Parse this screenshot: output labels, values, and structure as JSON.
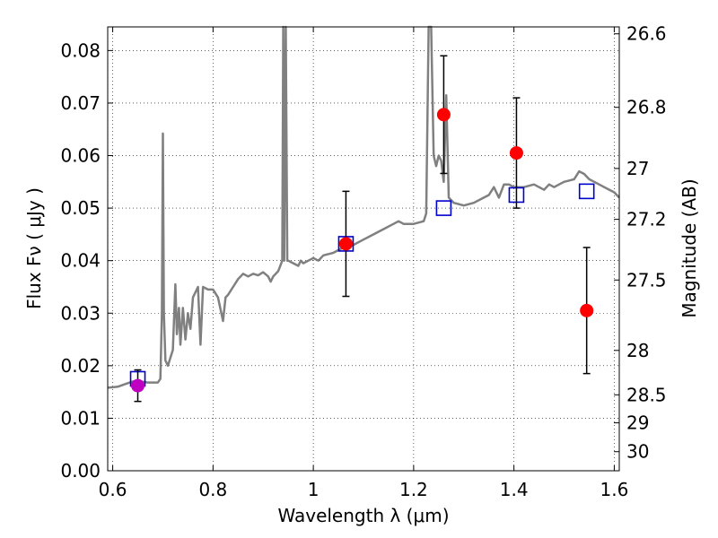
{
  "chart_data": {
    "type": "scatter",
    "xlabel": "Wavelength  λ (μm)",
    "ylabel": "Flux  Fν  ( μJy )",
    "ylabel_right": "Magnitude (AB)",
    "xlim": [
      0.59,
      1.61
    ],
    "ylim": [
      0.0,
      0.0845
    ],
    "grid": true,
    "x_ticks": [
      {
        "value": 0.6,
        "label": "0.6"
      },
      {
        "value": 0.8,
        "label": "0.8"
      },
      {
        "value": 1.0,
        "label": "1"
      },
      {
        "value": 1.2,
        "label": "1.2"
      },
      {
        "value": 1.4,
        "label": "1.4"
      },
      {
        "value": 1.6,
        "label": "1.6"
      }
    ],
    "y_ticks": [
      {
        "value": 0.0,
        "label": "0.00"
      },
      {
        "value": 0.01,
        "label": "0.01"
      },
      {
        "value": 0.02,
        "label": "0.02"
      },
      {
        "value": 0.03,
        "label": "0.03"
      },
      {
        "value": 0.04,
        "label": "0.04"
      },
      {
        "value": 0.05,
        "label": "0.05"
      },
      {
        "value": 0.06,
        "label": "0.06"
      },
      {
        "value": 0.07,
        "label": "0.07"
      },
      {
        "value": 0.08,
        "label": "0.08"
      }
    ],
    "right_ticks": [
      {
        "value": 26.6,
        "label": "26.6"
      },
      {
        "value": 26.8,
        "label": "26.8"
      },
      {
        "value": 27.0,
        "label": "27"
      },
      {
        "value": 27.2,
        "label": "27.2"
      },
      {
        "value": 27.5,
        "label": "27.5"
      },
      {
        "value": 28.0,
        "label": "28"
      },
      {
        "value": 28.5,
        "label": "28.5"
      },
      {
        "value": 29.0,
        "label": "29"
      },
      {
        "value": 30.0,
        "label": "30"
      }
    ],
    "colors": {
      "spectrum": "#808080",
      "observed": "#ff0000",
      "observed_first": "#c000c0",
      "model": "#0000cc",
      "errorbar": "#000000",
      "grid": "#000000"
    },
    "spectrum": [
      [
        0.59,
        0.0158
      ],
      [
        0.61,
        0.016
      ],
      [
        0.625,
        0.0165
      ],
      [
        0.64,
        0.017
      ],
      [
        0.655,
        0.017
      ],
      [
        0.67,
        0.0168
      ],
      [
        0.69,
        0.0168
      ],
      [
        0.695,
        0.0175
      ],
      [
        0.698,
        0.03
      ],
      [
        0.7,
        0.0642
      ],
      [
        0.702,
        0.03
      ],
      [
        0.705,
        0.021
      ],
      [
        0.71,
        0.02
      ],
      [
        0.72,
        0.023
      ],
      [
        0.725,
        0.0355
      ],
      [
        0.728,
        0.026
      ],
      [
        0.732,
        0.031
      ],
      [
        0.735,
        0.024
      ],
      [
        0.74,
        0.031
      ],
      [
        0.745,
        0.025
      ],
      [
        0.75,
        0.03
      ],
      [
        0.755,
        0.027
      ],
      [
        0.76,
        0.033
      ],
      [
        0.77,
        0.035
      ],
      [
        0.775,
        0.024
      ],
      [
        0.78,
        0.035
      ],
      [
        0.79,
        0.0345
      ],
      [
        0.8,
        0.0345
      ],
      [
        0.81,
        0.033
      ],
      [
        0.82,
        0.0285
      ],
      [
        0.825,
        0.033
      ],
      [
        0.83,
        0.0335
      ],
      [
        0.84,
        0.035
      ],
      [
        0.85,
        0.0365
      ],
      [
        0.86,
        0.0375
      ],
      [
        0.87,
        0.037
      ],
      [
        0.88,
        0.0375
      ],
      [
        0.89,
        0.0372
      ],
      [
        0.9,
        0.0378
      ],
      [
        0.91,
        0.037
      ],
      [
        0.915,
        0.036
      ],
      [
        0.92,
        0.037
      ],
      [
        0.93,
        0.038
      ],
      [
        0.938,
        0.04
      ],
      [
        0.94,
        0.0845
      ],
      [
        0.942,
        0.04
      ],
      [
        0.945,
        0.0845
      ],
      [
        0.948,
        0.04
      ],
      [
        0.95,
        0.04
      ],
      [
        0.96,
        0.0395
      ],
      [
        0.97,
        0.039
      ],
      [
        0.975,
        0.04
      ],
      [
        0.98,
        0.0395
      ],
      [
        0.99,
        0.04
      ],
      [
        1.0,
        0.0405
      ],
      [
        1.01,
        0.04
      ],
      [
        1.02,
        0.041
      ],
      [
        1.04,
        0.0415
      ],
      [
        1.06,
        0.0425
      ],
      [
        1.08,
        0.043
      ],
      [
        1.1,
        0.044
      ],
      [
        1.12,
        0.045
      ],
      [
        1.14,
        0.046
      ],
      [
        1.16,
        0.047
      ],
      [
        1.17,
        0.0475
      ],
      [
        1.18,
        0.047
      ],
      [
        1.2,
        0.047
      ],
      [
        1.22,
        0.0475
      ],
      [
        1.225,
        0.049
      ],
      [
        1.23,
        0.0845
      ],
      [
        1.235,
        0.0845
      ],
      [
        1.24,
        0.06
      ],
      [
        1.245,
        0.058
      ],
      [
        1.25,
        0.06
      ],
      [
        1.255,
        0.059
      ],
      [
        1.26,
        0.055
      ],
      [
        1.265,
        0.0715
      ],
      [
        1.27,
        0.052
      ],
      [
        1.28,
        0.051
      ],
      [
        1.3,
        0.0505
      ],
      [
        1.32,
        0.051
      ],
      [
        1.34,
        0.052
      ],
      [
        1.35,
        0.0525
      ],
      [
        1.36,
        0.054
      ],
      [
        1.37,
        0.052
      ],
      [
        1.38,
        0.0545
      ],
      [
        1.39,
        0.0545
      ],
      [
        1.4,
        0.054
      ],
      [
        1.42,
        0.054
      ],
      [
        1.44,
        0.0545
      ],
      [
        1.45,
        0.054
      ],
      [
        1.46,
        0.0535
      ],
      [
        1.47,
        0.0545
      ],
      [
        1.48,
        0.054
      ],
      [
        1.49,
        0.0545
      ],
      [
        1.5,
        0.055
      ],
      [
        1.52,
        0.0555
      ],
      [
        1.53,
        0.057
      ],
      [
        1.54,
        0.0565
      ],
      [
        1.55,
        0.0555
      ],
      [
        1.56,
        0.055
      ],
      [
        1.57,
        0.0545
      ],
      [
        1.58,
        0.054
      ],
      [
        1.59,
        0.0535
      ],
      [
        1.6,
        0.053
      ],
      [
        1.61,
        0.052
      ]
    ],
    "observed": [
      {
        "x": 0.65,
        "y": 0.0162,
        "err": 0.003,
        "color": "#c000c0"
      },
      {
        "x": 1.065,
        "y": 0.0432,
        "err": 0.01,
        "color": "#ff0000"
      },
      {
        "x": 1.26,
        "y": 0.0678,
        "err": 0.0112,
        "color": "#ff0000"
      },
      {
        "x": 1.405,
        "y": 0.0605,
        "err": 0.0105,
        "color": "#ff0000"
      },
      {
        "x": 1.545,
        "y": 0.0305,
        "err": 0.012,
        "color": "#ff0000"
      }
    ],
    "model": [
      {
        "x": 0.65,
        "y": 0.0175
      },
      {
        "x": 1.065,
        "y": 0.0432
      },
      {
        "x": 1.26,
        "y": 0.05
      },
      {
        "x": 1.405,
        "y": 0.0525
      },
      {
        "x": 1.545,
        "y": 0.0532
      }
    ]
  }
}
